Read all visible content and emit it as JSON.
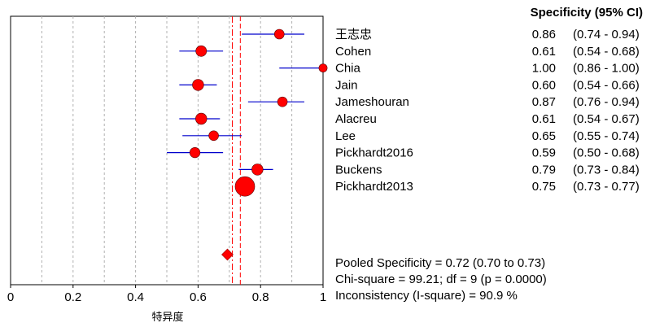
{
  "chart_data": {
    "type": "forest",
    "header": "Specificity (95% CI)",
    "xlabel": "特异度",
    "xlim": [
      0,
      1
    ],
    "xticks": [
      "0",
      "0.2",
      "0.4",
      "0.6",
      "0.8",
      "1"
    ],
    "studies": [
      {
        "name": "王志忠",
        "est": 0.86,
        "lo": 0.74,
        "hi": 0.94,
        "est_text": "0.86",
        "ci_text": "(0.74 - 0.94)",
        "weight": 1.0
      },
      {
        "name": "Cohen",
        "est": 0.61,
        "lo": 0.54,
        "hi": 0.68,
        "est_text": "0.61",
        "ci_text": "(0.54 - 0.68)",
        "weight": 1.1
      },
      {
        "name": "Chia",
        "est": 1.0,
        "lo": 0.86,
        "hi": 1.0,
        "est_text": "1.00",
        "ci_text": "(0.86 - 1.00)",
        "weight": 0.85
      },
      {
        "name": "Jain",
        "est": 0.6,
        "lo": 0.54,
        "hi": 0.66,
        "est_text": "0.60",
        "ci_text": "(0.54 - 0.66)",
        "weight": 1.15
      },
      {
        "name": "Jameshouran",
        "est": 0.87,
        "lo": 0.76,
        "hi": 0.94,
        "est_text": "0.87",
        "ci_text": "(0.76 - 0.94)",
        "weight": 1.0
      },
      {
        "name": "Alacreu",
        "est": 0.61,
        "lo": 0.54,
        "hi": 0.67,
        "est_text": "0.61",
        "ci_text": "(0.54 - 0.67)",
        "weight": 1.15
      },
      {
        "name": "Lee",
        "est": 0.65,
        "lo": 0.55,
        "hi": 0.74,
        "est_text": "0.65",
        "ci_text": "(0.55 - 0.74)",
        "weight": 1.0
      },
      {
        "name": "Pickhardt2016",
        "est": 0.59,
        "lo": 0.5,
        "hi": 0.68,
        "est_text": "0.59",
        "ci_text": "(0.50 - 0.68)",
        "weight": 1.05
      },
      {
        "name": "Buckens",
        "est": 0.79,
        "lo": 0.73,
        "hi": 0.84,
        "est_text": "0.79",
        "ci_text": "(0.73 - 0.84)",
        "weight": 1.15
      },
      {
        "name": "Pickhardt2013",
        "est": 0.75,
        "lo": 0.73,
        "hi": 0.77,
        "est_text": "0.75",
        "ci_text": "(0.73 - 0.77)",
        "weight": 2.0
      }
    ],
    "pooled": {
      "est": 0.72,
      "lo": 0.7,
      "hi": 0.73
    },
    "stats_text": [
      "Pooled Specificity = 0.72 (0.70 to 0.73)",
      "Chi-square = 99.21; df =  9 (p = 0.0000)",
      "Inconsistency (I-square) = 90.9 %"
    ],
    "colors": {
      "marker": "#ff0000",
      "ci_line": "#0000cc",
      "ref_line": "#ff0000",
      "grid": "#b0b0b0",
      "axis": "#000000"
    }
  }
}
